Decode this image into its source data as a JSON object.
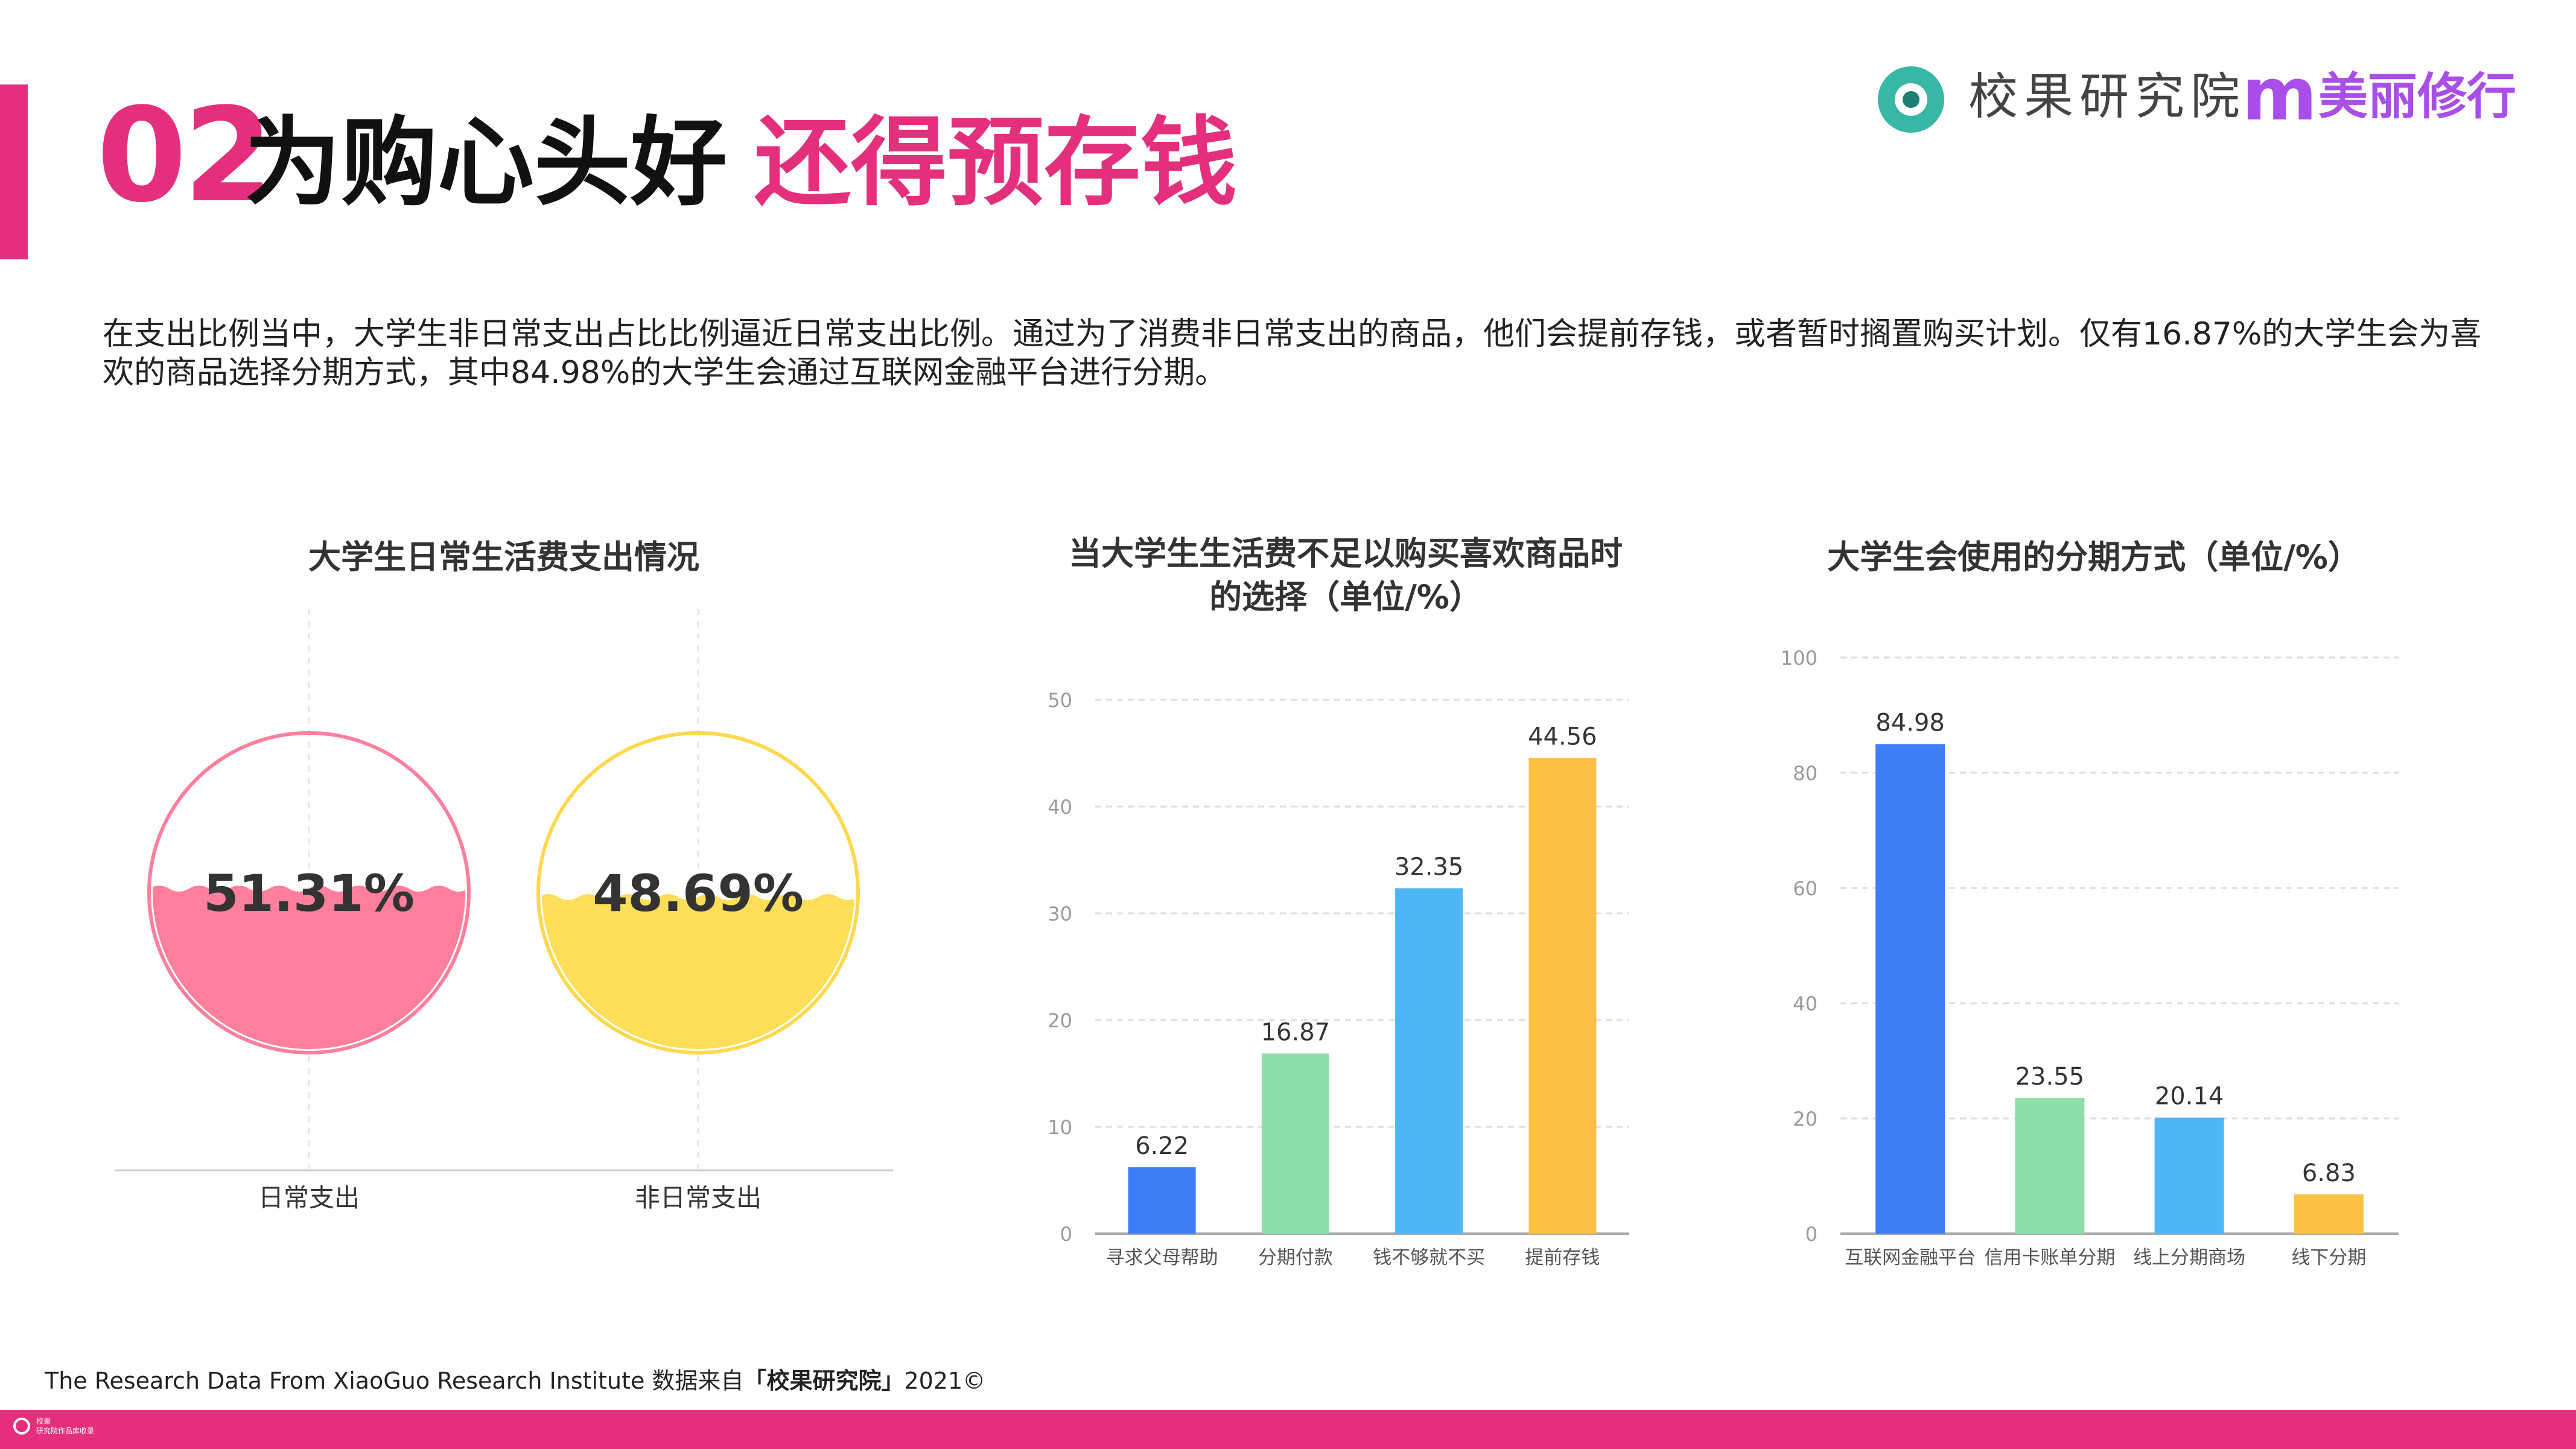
{
  "header": {
    "number": "02",
    "title_main": "为购心头好",
    "title_accent": "还得预存钱",
    "logo_text_1": "校果研究院",
    "logo_mark": "m",
    "logo_text_2": "美丽修行"
  },
  "description": "在支出比例当中，大学生非日常支出占比比例逼近日常支出比例。通过为了消费非日常支出的商品，他们会提前存钱，或者暂时搁置购买计划。仅有16.87%的大学生会为喜欢的商品选择分期方式，其中84.98%的大学生会通过互联网金融平台进行分期。",
  "charts": {
    "c1_title": "大学生日常生活费支出情况",
    "c2_title_line1": "当大学生生活费不足以购买喜欢商品时",
    "c2_title_line2": "的选择（单位/%）",
    "c3_title": "大学生会使用的分期方式（单位/%）"
  },
  "chart_data": [
    {
      "type": "pie",
      "title": "大学生日常生活费支出情况",
      "categories": [
        "日常支出",
        "非日常支出"
      ],
      "values": [
        51.31,
        48.69
      ],
      "labels": [
        "51.31%",
        "48.69%"
      ],
      "colors": [
        "#ff7f9c",
        "#ffde59"
      ],
      "ring_colors": [
        "#ff7f9c",
        "#ffd84d"
      ]
    },
    {
      "type": "bar",
      "title": "当大学生生活费不足以购买喜欢商品时的选择（单位/%）",
      "categories": [
        "寻求父母帮助",
        "分期付款",
        "钱不够就不买",
        "提前存钱"
      ],
      "values": [
        6.22,
        16.87,
        32.35,
        44.56
      ],
      "labels": [
        "6.22",
        "16.87",
        "32.35",
        "44.56"
      ],
      "colors": [
        "#3d7ef7",
        "#8ddea8",
        "#4fb6f5",
        "#ffc043"
      ],
      "ylim": [
        0,
        50
      ],
      "yticks": [
        0,
        10,
        20,
        30,
        40,
        50
      ],
      "grid": true
    },
    {
      "type": "bar",
      "title": "大学生会使用的分期方式（单位/%）",
      "categories": [
        "互联网金融平台",
        "信用卡账单分期",
        "线上分期商场",
        "线下分期"
      ],
      "values": [
        84.98,
        23.55,
        20.14,
        6.83
      ],
      "labels": [
        "84.98",
        "23.55",
        "20.14",
        "6.83"
      ],
      "colors": [
        "#3d7ef7",
        "#8ddea8",
        "#4fb6f5",
        "#ffc043"
      ],
      "ylim": [
        0,
        100
      ],
      "yticks": [
        0,
        20,
        40,
        60,
        80,
        100
      ],
      "grid": true
    }
  ],
  "footer": {
    "text_pre": "The Research Data From XiaoGuo Research Institute 数据来自",
    "text_bold": "「校果研究院」",
    "text_post": "2021©",
    "bar_small_1": "校果",
    "bar_small_2": "研究院作品库收录"
  }
}
